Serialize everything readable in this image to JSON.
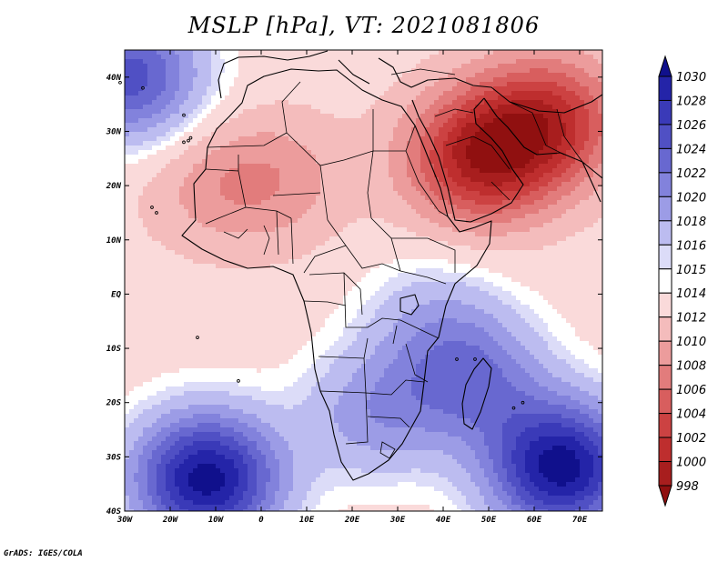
{
  "title": "MSLP [hPa], VT: 2021081806",
  "credit": "GrADS: IGES/COLA",
  "map": {
    "projection": "latlon",
    "lon_range": [
      -30,
      75
    ],
    "lat_range": [
      -40,
      45
    ],
    "x_ticks": [
      {
        "lon": -30,
        "label": "30W"
      },
      {
        "lon": -20,
        "label": "20W"
      },
      {
        "lon": -10,
        "label": "10W"
      },
      {
        "lon": 0,
        "label": "0"
      },
      {
        "lon": 10,
        "label": "10E"
      },
      {
        "lon": 20,
        "label": "20E"
      },
      {
        "lon": 30,
        "label": "30E"
      },
      {
        "lon": 40,
        "label": "40E"
      },
      {
        "lon": 50,
        "label": "50E"
      },
      {
        "lon": 60,
        "label": "60E"
      },
      {
        "lon": 70,
        "label": "70E"
      }
    ],
    "y_ticks": [
      {
        "lat": 40,
        "label": "40N"
      },
      {
        "lat": 30,
        "label": "30N"
      },
      {
        "lat": 20,
        "label": "20N"
      },
      {
        "lat": 10,
        "label": "10N"
      },
      {
        "lat": 0,
        "label": "EQ"
      },
      {
        "lat": -10,
        "label": "10S"
      },
      {
        "lat": -20,
        "label": "20S"
      },
      {
        "lat": -30,
        "label": "30S"
      },
      {
        "lat": -40,
        "label": "40S"
      }
    ]
  },
  "colorbar": {
    "levels": [
      "1030",
      "1028",
      "1026",
      "1024",
      "1022",
      "1020",
      "1018",
      "1016",
      "1015",
      "1014",
      "1012",
      "1010",
      "1008",
      "1006",
      "1004",
      "1002",
      "1000",
      "998"
    ],
    "colors": [
      "#10108c",
      "#2424a8",
      "#3a3ab8",
      "#5050c4",
      "#6868d0",
      "#8282dc",
      "#9c9ce6",
      "#bcbcf0",
      "#dcdcf8",
      "#ffffff",
      "#fadada",
      "#f4bcbc",
      "#ec9c9c",
      "#e27c7c",
      "#d85e5e",
      "#cc4242",
      "#be2e2e",
      "#a81e1e",
      "#901010"
    ]
  },
  "pressure_field": {
    "background_hpa": 1013,
    "centers": [
      {
        "name": "south-atlantic-high",
        "lon": -12,
        "lat": -34,
        "hpa": 1031
      },
      {
        "name": "indian-ocean-high",
        "lon": 66,
        "lat": -32,
        "hpa": 1031
      },
      {
        "name": "azores-high",
        "lon": -29,
        "lat": 40,
        "hpa": 1025
      },
      {
        "name": "madagascar-ridge",
        "lon": 47,
        "lat": -16,
        "hpa": 1021
      },
      {
        "name": "southern-africa-ridge",
        "lon": 25,
        "lat": -22,
        "hpa": 1019
      },
      {
        "name": "arabian-low",
        "lon": 48,
        "lat": 25,
        "hpa": 1000
      },
      {
        "name": "iran-low",
        "lon": 63,
        "lat": 32,
        "hpa": 1002
      },
      {
        "name": "sahara-low",
        "lon": 3,
        "lat": 21,
        "hpa": 1009
      },
      {
        "name": "west-africa-low",
        "lon": -12,
        "lat": 20,
        "hpa": 1010
      },
      {
        "name": "east-africa-high",
        "lon": 38,
        "lat": -5,
        "hpa": 1017
      }
    ]
  }
}
